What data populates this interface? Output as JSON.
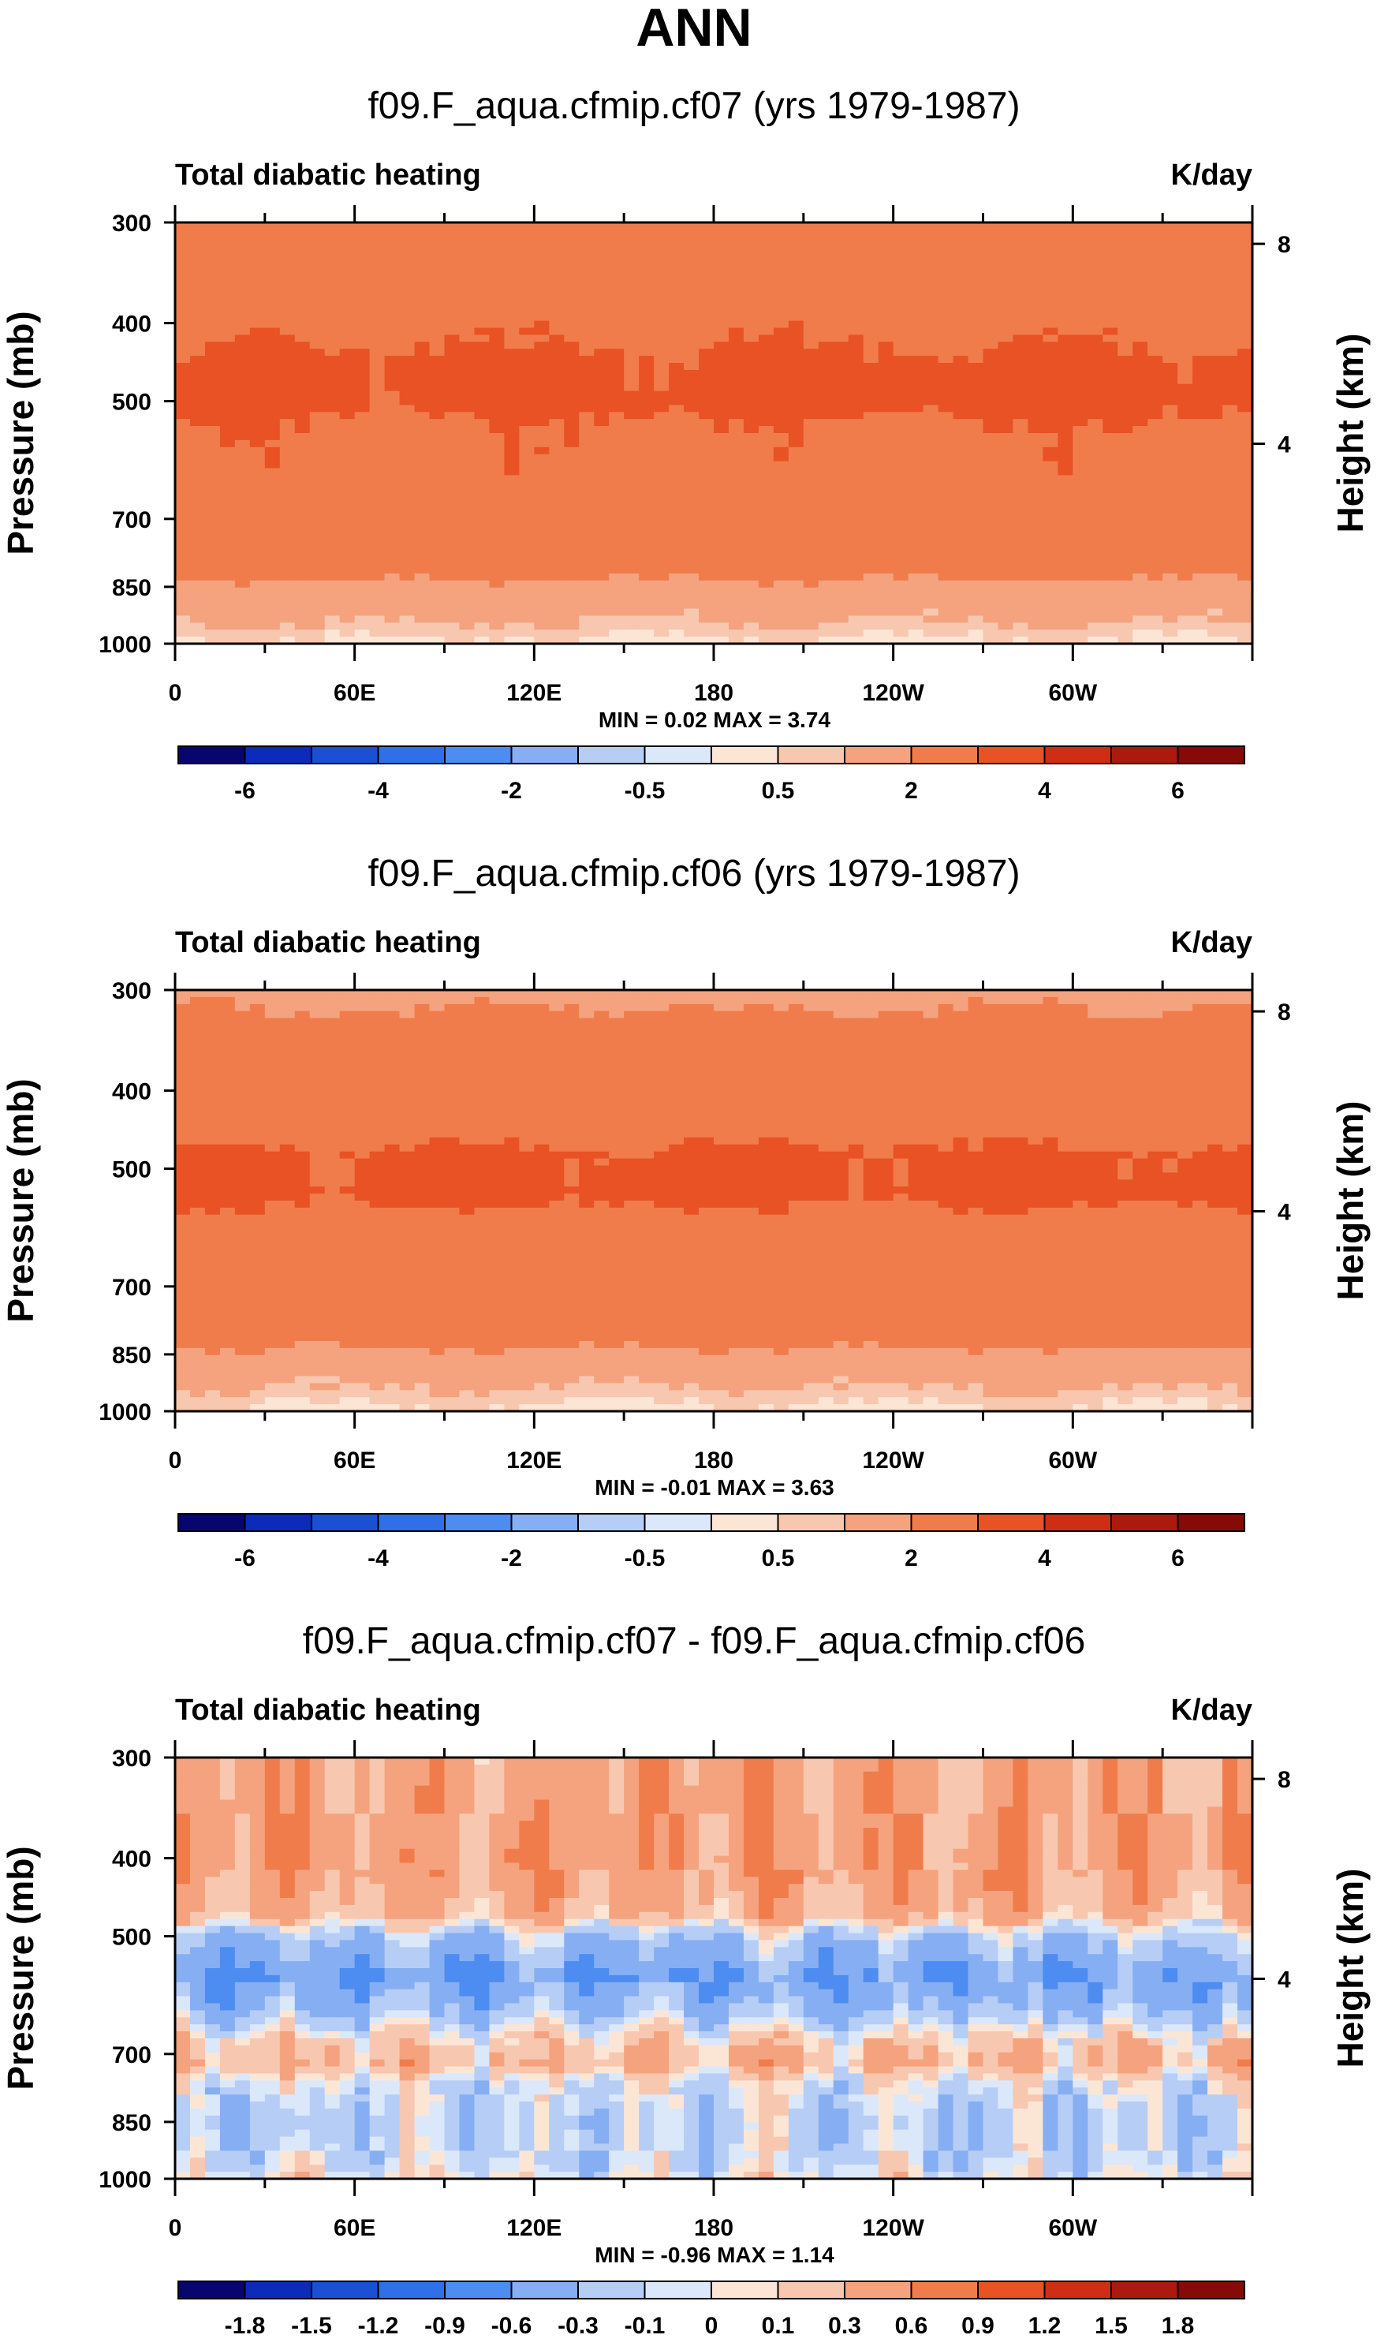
{
  "figure": {
    "title": "ANN"
  },
  "colors": {
    "abs_scale": [
      "#08066e",
      "#0a2bbb",
      "#1a4fd6",
      "#2f6fea",
      "#4d8cf0",
      "#86aef3",
      "#b6cdf6",
      "#dbe8fa",
      "#fbe6d6",
      "#f8c7b0",
      "#f4a37e",
      "#f07c4c",
      "#e85224",
      "#d02d15",
      "#ab1a0d",
      "#860b07"
    ],
    "diff_scale": [
      "#08066e",
      "#0a2bbb",
      "#1a4fd6",
      "#2f6fea",
      "#4d8cf0",
      "#86aef3",
      "#b6cdf6",
      "#dbe8fa",
      "#fbe6d6",
      "#f8c7b0",
      "#f4a37e",
      "#f07c4c",
      "#e85224",
      "#d02d15",
      "#ab1a0d",
      "#860b07"
    ]
  },
  "chart_data": [
    {
      "type": "heatmap",
      "title": "f09.F_aqua.cfmip.cf07 (yrs 1979-1987)",
      "label_left": "Total diabatic heating",
      "label_right": "K/day",
      "ylabel": "Pressure (mb)",
      "ylabel_right": "Height (km)",
      "xtick_labels": [
        "0",
        "60E",
        "120E",
        "180",
        "120W",
        "60W"
      ],
      "ytick_labels": [
        "300",
        "400",
        "500",
        "700",
        "850",
        "1000"
      ],
      "yright_tick_labels": [
        "8",
        "4"
      ],
      "stats": "MIN =   0.02  MAX =   3.74",
      "colorbar_labels": [
        "-6",
        "-4",
        "-2",
        "-0.5",
        "0.5",
        "2",
        "4",
        "6"
      ],
      "colorbar_levels": [
        -8,
        -6,
        -5,
        -4,
        -3,
        -2,
        -1,
        -0.5,
        0,
        0.5,
        1,
        2,
        3,
        4,
        5,
        6
      ],
      "min": 0.02,
      "max": 3.74,
      "profile": [
        {
          "p": 300,
          "v": 2.6
        },
        {
          "p": 400,
          "v": 2.7
        },
        {
          "p": 450,
          "v": 3.2
        },
        {
          "p": 500,
          "v": 3.3
        },
        {
          "p": 550,
          "v": 2.8
        },
        {
          "p": 700,
          "v": 2.5
        },
        {
          "p": 820,
          "v": 2.3
        },
        {
          "p": 850,
          "v": 1.6
        },
        {
          "p": 920,
          "v": 1.2
        },
        {
          "p": 960,
          "v": 0.8
        },
        {
          "p": 1000,
          "v": 0.3
        }
      ]
    },
    {
      "type": "heatmap",
      "title": "f09.F_aqua.cfmip.cf06 (yrs 1979-1987)",
      "label_left": "Total diabatic heating",
      "label_right": "K/day",
      "ylabel": "Pressure (mb)",
      "ylabel_right": "Height (km)",
      "xtick_labels": [
        "0",
        "60E",
        "120E",
        "180",
        "120W",
        "60W"
      ],
      "ytick_labels": [
        "300",
        "400",
        "500",
        "700",
        "850",
        "1000"
      ],
      "yright_tick_labels": [
        "8",
        "4"
      ],
      "stats": "MIN =  -0.01  MAX =   3.63",
      "colorbar_labels": [
        "-6",
        "-4",
        "-2",
        "-0.5",
        "0.5",
        "2",
        "4",
        "6"
      ],
      "colorbar_levels": [
        -8,
        -6,
        -5,
        -4,
        -3,
        -2,
        -1,
        -0.5,
        0,
        0.5,
        1,
        2,
        3,
        4,
        5,
        6
      ],
      "min": -0.01,
      "max": 3.63,
      "profile": [
        {
          "p": 300,
          "v": 1.5
        },
        {
          "p": 330,
          "v": 2.4
        },
        {
          "p": 450,
          "v": 2.6
        },
        {
          "p": 480,
          "v": 3.2
        },
        {
          "p": 540,
          "v": 3.3
        },
        {
          "p": 580,
          "v": 2.6
        },
        {
          "p": 820,
          "v": 2.4
        },
        {
          "p": 850,
          "v": 1.6
        },
        {
          "p": 920,
          "v": 1.2
        },
        {
          "p": 960,
          "v": 0.7
        },
        {
          "p": 1000,
          "v": 0.3
        }
      ]
    },
    {
      "type": "heatmap",
      "title": "f09.F_aqua.cfmip.cf07 - f09.F_aqua.cfmip.cf06",
      "label_left": "Total diabatic heating",
      "label_right": "K/day",
      "ylabel": "Pressure (mb)",
      "ylabel_right": "Height (km)",
      "xtick_labels": [
        "0",
        "60E",
        "120E",
        "180",
        "120W",
        "60W"
      ],
      "ytick_labels": [
        "300",
        "400",
        "500",
        "700",
        "850",
        "1000"
      ],
      "yright_tick_labels": [
        "8",
        "4"
      ],
      "stats": "MIN =  -0.96  MAX =   1.14",
      "colorbar_labels": [
        "-1.8",
        "-1.5",
        "-1.2",
        "-0.9",
        "-0.6",
        "-0.3",
        "-0.1",
        "0",
        "0.1",
        "0.3",
        "0.6",
        "0.9",
        "1.2",
        "1.5",
        "1.8"
      ],
      "colorbar_levels": [
        -2.1,
        -1.8,
        -1.5,
        -1.2,
        -0.9,
        -0.6,
        -0.3,
        -0.1,
        0,
        0.1,
        0.3,
        0.6,
        0.9,
        1.2,
        1.5,
        1.8
      ],
      "min": -0.96,
      "max": 1.14,
      "profile": [
        {
          "p": 300,
          "v": 0.4
        },
        {
          "p": 400,
          "v": 0.5
        },
        {
          "p": 470,
          "v": 0.3
        },
        {
          "p": 500,
          "v": -0.2
        },
        {
          "p": 560,
          "v": -0.55
        },
        {
          "p": 620,
          "v": -0.3
        },
        {
          "p": 680,
          "v": 0.2
        },
        {
          "p": 720,
          "v": 0.3
        },
        {
          "p": 760,
          "v": -0.05
        },
        {
          "p": 850,
          "v": -0.2
        },
        {
          "p": 960,
          "v": -0.1
        },
        {
          "p": 1000,
          "v": 0.02
        }
      ]
    }
  ]
}
